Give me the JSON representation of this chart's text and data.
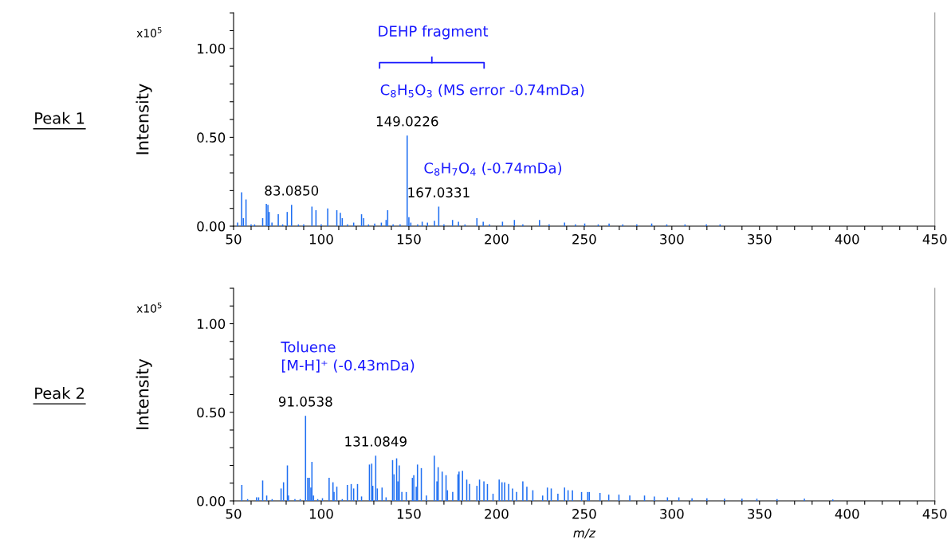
{
  "chart_data": [
    {
      "type": "bar",
      "ylabel": "Intensity",
      "x": [
        52.3,
        54.6,
        55.6,
        57.1,
        60,
        62,
        66.6,
        68.7,
        69.6,
        70.3,
        71.9,
        75.5,
        78,
        80.6,
        83.085,
        87,
        90,
        94.7,
        97.0,
        100,
        103.7,
        108.9,
        110.9,
        112.0,
        115,
        118.5,
        123.0,
        124.2,
        127,
        130.5,
        134.3,
        137.0,
        137.9,
        141,
        145,
        149.0226,
        150.0,
        151.1,
        155,
        157.6,
        160.6,
        164.6,
        167.0331,
        170,
        174.9,
        178.3,
        182,
        188.8,
        192.4,
        196,
        203.4,
        210.2,
        215,
        224.5,
        230,
        238.8,
        245,
        250.3,
        258,
        264.2,
        272,
        280,
        288.5,
        297.1,
        307.5,
        319.7,
        327.5
      ],
      "series": [
        {
          "color": "#1f6ff2",
          "values": [
            0.02,
            0.19,
            0.045,
            0.15,
            0.01,
            0.01,
            0.045,
            0.125,
            0.12,
            0.08,
            0.02,
            0.067,
            0.01,
            0.08,
            0.12,
            0.01,
            0.01,
            0.11,
            0.09,
            0.01,
            0.1,
            0.09,
            0.075,
            0.045,
            0.01,
            0.02,
            0.067,
            0.045,
            0.01,
            0.015,
            0.02,
            0.035,
            0.09,
            0.01,
            0.01,
            0.51,
            0.05,
            0.02,
            0.01,
            0.025,
            0.02,
            0.03,
            0.11,
            0.01,
            0.035,
            0.025,
            0.01,
            0.045,
            0.025,
            0.01,
            0.025,
            0.035,
            0.01,
            0.035,
            0.01,
            0.02,
            0.01,
            0.015,
            0.01,
            0.015,
            0.01,
            0.01,
            0.015,
            0.01,
            0.01,
            0.01,
            0.01
          ]
        }
      ],
      "xlim": [
        50,
        450
      ],
      "xticks": [
        50,
        {
          "value": 60,
          "label": null
        },
        {
          "value": 70,
          "label": null
        },
        {
          "value": 80,
          "label": null
        },
        {
          "value": 90,
          "label": null
        },
        100,
        {
          "value": 110,
          "label": null
        },
        {
          "value": 120,
          "label": null
        },
        {
          "value": 130,
          "label": null
        },
        {
          "value": 140,
          "label": null
        },
        150,
        {
          "value": 160,
          "label": null
        },
        {
          "value": 170,
          "label": null
        },
        {
          "value": 180,
          "label": null
        },
        {
          "value": 190,
          "label": null
        },
        200,
        {
          "value": 210,
          "label": null
        },
        {
          "value": 220,
          "label": null
        },
        {
          "value": 230,
          "label": null
        },
        {
          "value": 240,
          "label": null
        },
        250,
        {
          "value": 260,
          "label": null
        },
        {
          "value": 270,
          "label": null
        },
        {
          "value": 280,
          "label": null
        },
        {
          "value": 290,
          "label": null
        },
        300,
        {
          "value": 310,
          "label": null
        },
        {
          "value": 320,
          "label": null
        },
        {
          "value": 330,
          "label": null
        },
        {
          "value": 340,
          "label": null
        },
        350,
        {
          "value": 360,
          "label": null
        },
        {
          "value": 370,
          "label": null
        },
        {
          "value": 380,
          "label": null
        },
        {
          "value": 390,
          "label": null
        },
        400,
        {
          "value": 410,
          "label": null
        },
        {
          "value": 420,
          "label": null
        },
        {
          "value": 430,
          "label": null
        },
        {
          "value": 440,
          "label": null
        },
        450
      ],
      "ylim": [
        0,
        1.2
      ],
      "yticks": [
        {
          "value": 0,
          "label": "0.00"
        },
        {
          "value": 0.1,
          "label": null
        },
        {
          "value": 0.2,
          "label": null
        },
        {
          "value": 0.3,
          "label": null
        },
        {
          "value": 0.4,
          "label": null
        },
        {
          "value": 0.5,
          "label": "0.50"
        },
        {
          "value": 0.6,
          "label": null
        },
        {
          "value": 0.7,
          "label": null
        },
        {
          "value": 0.8,
          "label": null
        },
        {
          "value": 0.9,
          "label": null
        },
        {
          "value": 1.0,
          "label": "1.00"
        },
        {
          "value": 1.1,
          "label": null
        },
        {
          "value": 1.2,
          "label": null
        }
      ],
      "annotations": [
        "Peak 1",
        "x10$^{5}$",
        "DEHP fragment",
        "C$_{8}$H$_{5}$O$_{3}$ (MS error -0.74mDa)",
        "C$_{8}$H$_{7}$O$_{4}$ (-0.74mDa)",
        {
          "text": "83.0850",
          "x": 83.085,
          "y": 0.12
        },
        {
          "text": "149.0226",
          "x": 149.0226,
          "y": 0.51
        },
        {
          "text": "167.0331",
          "x": 167.0331,
          "y": 0.11
        }
      ]
    },
    {
      "type": "bar",
      "ylabel": "Intensity",
      "xlabel": "m/z",
      "x": [
        54.7,
        58,
        63.1,
        64.3,
        66.6,
        68.9,
        72,
        77.1,
        78.5,
        80.7,
        81.3,
        85,
        88,
        91.0538,
        92.3,
        93.2,
        94.1,
        94.7,
        95.6,
        98,
        100.7,
        104.5,
        106.7,
        107.3,
        108.9,
        112,
        114.9,
        117.1,
        118.5,
        120.7,
        123.0,
        127.5,
        128.8,
        129.4,
        131.0849,
        132.0,
        134.7,
        137,
        140.7,
        141.5,
        143.0,
        143.7,
        144.5,
        146.0,
        148.5,
        152.0,
        152.8,
        154.2,
        154.9,
        157.1,
        160,
        164.5,
        166.0,
        166.7,
        169.0,
        171.2,
        172.0,
        175,
        178.0,
        178.6,
        180.6,
        183.0,
        184.6,
        188.8,
        190.3,
        192.8,
        194.8,
        198,
        201.5,
        203.1,
        204.6,
        206.9,
        209.1,
        211.4,
        215.0,
        217.3,
        220.7,
        226.3,
        229.0,
        231.2,
        235,
        238.8,
        240.8,
        243.3,
        248.5,
        252.0,
        252.9,
        259.0,
        264,
        269.8,
        276,
        284.4,
        290,
        297.5,
        304,
        311.5,
        320,
        330.0,
        340,
        348.5,
        360,
        375.6,
        391.8
      ],
      "series": [
        {
          "color": "#1f6ff2",
          "values": [
            0.09,
            0.01,
            0.02,
            0.02,
            0.115,
            0.03,
            0.01,
            0.07,
            0.105,
            0.2,
            0.03,
            0.01,
            0.01,
            0.48,
            0.13,
            0.13,
            0.075,
            0.22,
            0.03,
            0.01,
            0.015,
            0.13,
            0.105,
            0.05,
            0.08,
            0.01,
            0.09,
            0.095,
            0.07,
            0.095,
            0.025,
            0.205,
            0.21,
            0.085,
            0.255,
            0.07,
            0.075,
            0.02,
            0.23,
            0.15,
            0.24,
            0.11,
            0.2,
            0.05,
            0.05,
            0.13,
            0.145,
            0.08,
            0.205,
            0.185,
            0.03,
            0.255,
            0.11,
            0.19,
            0.165,
            0.145,
            0.06,
            0.05,
            0.15,
            0.165,
            0.17,
            0.12,
            0.095,
            0.085,
            0.12,
            0.11,
            0.095,
            0.04,
            0.12,
            0.105,
            0.105,
            0.095,
            0.07,
            0.05,
            0.11,
            0.08,
            0.06,
            0.03,
            0.075,
            0.07,
            0.04,
            0.075,
            0.06,
            0.06,
            0.05,
            0.05,
            0.05,
            0.045,
            0.035,
            0.035,
            0.03,
            0.03,
            0.025,
            0.02,
            0.02,
            0.015,
            0.015,
            0.012,
            0.012,
            0.012,
            0.01,
            0.012,
            0.008
          ]
        }
      ],
      "xlim": [
        50,
        450
      ],
      "xticks": [
        50,
        {
          "value": 60,
          "label": null
        },
        {
          "value": 70,
          "label": null
        },
        {
          "value": 80,
          "label": null
        },
        {
          "value": 90,
          "label": null
        },
        100,
        {
          "value": 110,
          "label": null
        },
        {
          "value": 120,
          "label": null
        },
        {
          "value": 130,
          "label": null
        },
        {
          "value": 140,
          "label": null
        },
        150,
        {
          "value": 160,
          "label": null
        },
        {
          "value": 170,
          "label": null
        },
        {
          "value": 180,
          "label": null
        },
        {
          "value": 190,
          "label": null
        },
        200,
        {
          "value": 210,
          "label": null
        },
        {
          "value": 220,
          "label": null
        },
        {
          "value": 230,
          "label": null
        },
        {
          "value": 240,
          "label": null
        },
        250,
        {
          "value": 260,
          "label": null
        },
        {
          "value": 270,
          "label": null
        },
        {
          "value": 280,
          "label": null
        },
        {
          "value": 290,
          "label": null
        },
        300,
        {
          "value": 310,
          "label": null
        },
        {
          "value": 320,
          "label": null
        },
        {
          "value": 330,
          "label": null
        },
        {
          "value": 340,
          "label": null
        },
        350,
        {
          "value": 360,
          "label": null
        },
        {
          "value": 370,
          "label": null
        },
        {
          "value": 380,
          "label": null
        },
        {
          "value": 390,
          "label": null
        },
        400,
        {
          "value": 410,
          "label": null
        },
        {
          "value": 420,
          "label": null
        },
        {
          "value": 430,
          "label": null
        },
        {
          "value": 440,
          "label": null
        },
        450
      ],
      "ylim": [
        0,
        1.2
      ],
      "yticks": [
        {
          "value": 0,
          "label": "0.00"
        },
        {
          "value": 0.1,
          "label": null
        },
        {
          "value": 0.2,
          "label": null
        },
        {
          "value": 0.3,
          "label": null
        },
        {
          "value": 0.4,
          "label": null
        },
        {
          "value": 0.5,
          "label": "0.50"
        },
        {
          "value": 0.6,
          "label": null
        },
        {
          "value": 0.7,
          "label": null
        },
        {
          "value": 0.8,
          "label": null
        },
        {
          "value": 0.9,
          "label": null
        },
        {
          "value": 1.0,
          "label": "1.00"
        },
        {
          "value": 1.1,
          "label": null
        },
        {
          "value": 1.2,
          "label": null
        }
      ],
      "annotations": [
        "Peak 2",
        "x10$^{5}$",
        "Toluene\n[M-H]⁺ (-0.43mDa)",
        {
          "text": "91.0538",
          "x": 91.0538,
          "y": 0.48
        },
        {
          "text": "131.0849",
          "x": 131.0849,
          "y": 0.255
        }
      ]
    }
  ]
}
